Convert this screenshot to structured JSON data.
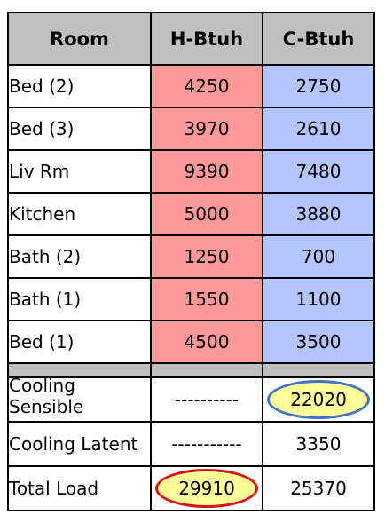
{
  "header": {
    "room": "Room",
    "heat": "H-Btuh",
    "cool": "C-Btuh"
  },
  "rooms": [
    {
      "name": "Bed (2)",
      "heat": "4250",
      "cool": "2750"
    },
    {
      "name": "Bed (3)",
      "heat": "3970",
      "cool": "2610"
    },
    {
      "name": "Liv Rm",
      "heat": "9390",
      "cool": "7480"
    },
    {
      "name": "Kitchen",
      "heat": "5000",
      "cool": "3880"
    },
    {
      "name": "Bath (2)",
      "heat": "1250",
      "cool": "700"
    },
    {
      "name": "Bath (1)",
      "heat": "1550",
      "cool": "1100"
    },
    {
      "name": "Bed (1)",
      "heat": "4500",
      "cool": "3500"
    }
  ],
  "summary": {
    "sensible": {
      "label": "Cooling Sensible",
      "heat": "----------",
      "cool": "22020"
    },
    "latent": {
      "label": "Cooling Latent",
      "heat": "-----------",
      "cool": "3350"
    },
    "total": {
      "label": "Total Load",
      "heat": "29910",
      "cool": "25370"
    }
  },
  "colors": {
    "header_bg": "#c0c0c0",
    "heating_bg": "#ff9999",
    "cooling_bg": "#b3c4ff",
    "highlight_fill": "#ffff99",
    "highlight_blue": "#4472c4",
    "highlight_red": "#dd1111"
  }
}
